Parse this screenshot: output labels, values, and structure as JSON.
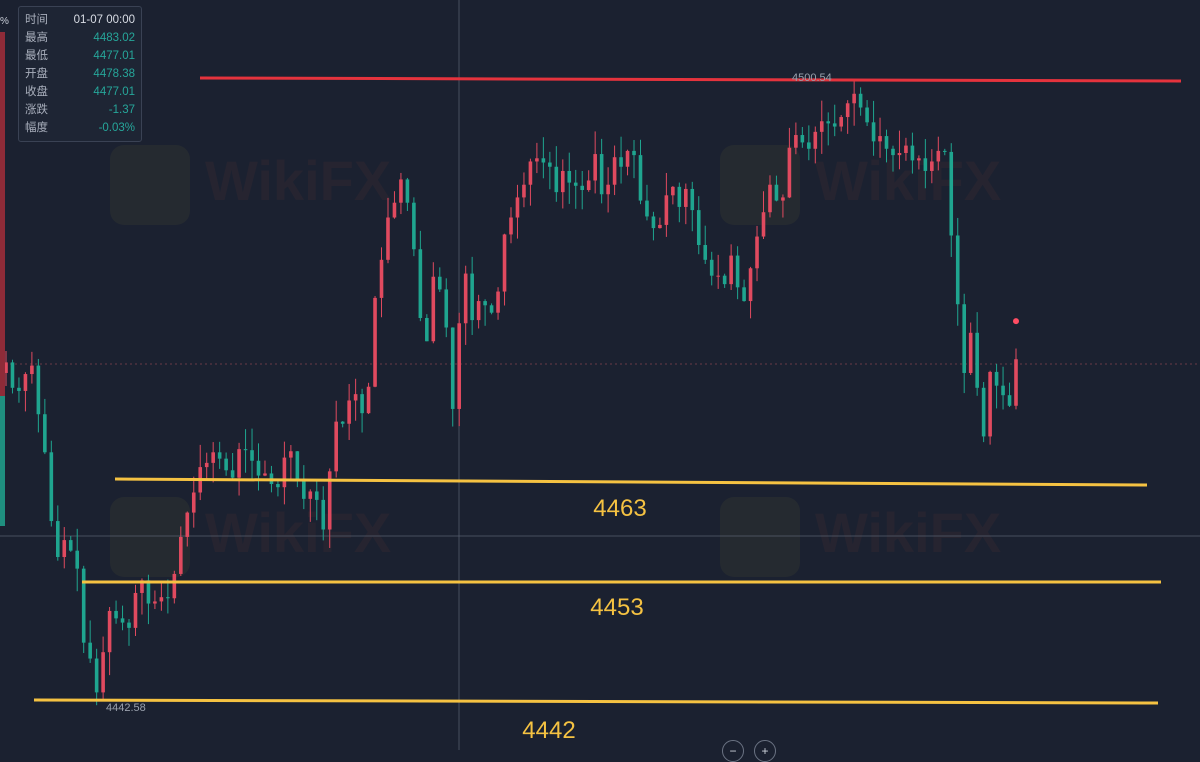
{
  "info_panel": {
    "rows": [
      {
        "key": "时间",
        "value": "01-07 00:00",
        "color": "#d9dde5"
      },
      {
        "key": "最高",
        "value": "4483.02",
        "color": "#26a69a"
      },
      {
        "key": "最低",
        "value": "4477.01",
        "color": "#26a69a"
      },
      {
        "key": "开盘",
        "value": "4478.38",
        "color": "#26a69a"
      },
      {
        "key": "收盘",
        "value": "4477.01",
        "color": "#26a69a"
      },
      {
        "key": "涨跌",
        "value": "-1.37",
        "color": "#26a69a"
      },
      {
        "key": "幅度",
        "value": "-0.03%",
        "color": "#26a69a"
      }
    ]
  },
  "pct_stub": "%",
  "watermark": "WikiFX",
  "colors": {
    "background": "#1b2130",
    "up": "#e04a5f",
    "down": "#1fa58f",
    "resistance_line": "#e5333d",
    "support_line": "#f5c242",
    "support_label": "#f5c242",
    "crosshair": "#5a6272"
  },
  "chart_data": {
    "type": "candlestick",
    "high_marker": "4500.54",
    "low_marker": "4442.58",
    "levels": [
      {
        "label": "4463",
        "value": 4463,
        "color": "#f5c242"
      },
      {
        "label": "4453",
        "value": 4453,
        "color": "#f5c242"
      },
      {
        "label": "4442",
        "value": 4442,
        "color": "#f5c242"
      }
    ],
    "resistance": {
      "value": 4500.5,
      "color": "#e5333d"
    },
    "price_scale": {
      "top_y": 4500.54,
      "bottom_y": 4442.58
    },
    "current_price": 4478.4,
    "close_path": [
      4474.5,
      4472.1,
      4471.8,
      4473.4,
      4474.2,
      4469.6,
      4466.0,
      4459.5,
      4456.1,
      4457.7,
      4456.7,
      4455.0,
      4448.0,
      4446.5,
      4443.3,
      4447.1,
      4451.0,
      4450.3,
      4449.9,
      4449.4,
      4452.7,
      4453.9,
      4451.7,
      4451.9,
      4452.3,
      4452.2,
      4454.5,
      4458.0,
      4460.3,
      4462.2,
      4464.6,
      4465.0,
      4466.0,
      4465.4,
      4464.3,
      4463.6,
      4466.3,
      4466.2,
      4465.2,
      4463.8,
      4464.0,
      4463.0,
      4462.7,
      4465.5,
      4466.1,
      4463.5,
      4461.6,
      4462.3,
      4461.5,
      4458.7,
      4464.2,
      4468.9,
      4468.7,
      4470.9,
      4471.5,
      4469.7,
      4472.2,
      4480.6,
      4484.2,
      4488.2,
      4489.6,
      4491.8,
      4489.6,
      4485.2,
      4478.7,
      4476.5,
      4482.6,
      4481.4,
      4477.8,
      4470.1,
      4478.2,
      4482.9,
      4478.5,
      4480.3,
      4479.9,
      4479.2,
      4481.2,
      4486.6,
      4488.2,
      4490.1,
      4491.3,
      4493.5,
      4493.8,
      4493.4,
      4493.0,
      4490.6,
      4492.6,
      4491.5,
      4491.2,
      4490.8,
      4491.7,
      4494.2,
      4490.4,
      4491.3,
      4493.9,
      4493.0,
      4494.5,
      4494.1,
      4489.8,
      4488.3,
      4487.2,
      4487.5,
      4490.3,
      4491.1,
      4489.2,
      4490.9,
      4488.9,
      4485.6,
      4484.2,
      4482.7,
      4482.7,
      4481.9,
      4484.6,
      4481.6,
      4480.3,
      4483.4,
      4486.4,
      4488.7,
      4491.3,
      4489.8,
      4490.1,
      4494.8,
      4496.0,
      4495.3,
      4494.7,
      4496.3,
      4497.3,
      4497.1,
      4496.8,
      4497.7,
      4499.0,
      4499.9,
      4498.6,
      4497.2,
      4495.4,
      4495.9,
      4494.7,
      4494.1,
      4494.3,
      4495.0,
      4493.6,
      4493.8,
      4492.6,
      4493.5,
      4494.5,
      4494.4,
      4486.5,
      4480.0,
      4473.5,
      4477.3,
      4472.1,
      4467.5,
      4473.6,
      4472.3,
      4471.4,
      4470.4,
      4474.8
    ]
  }
}
